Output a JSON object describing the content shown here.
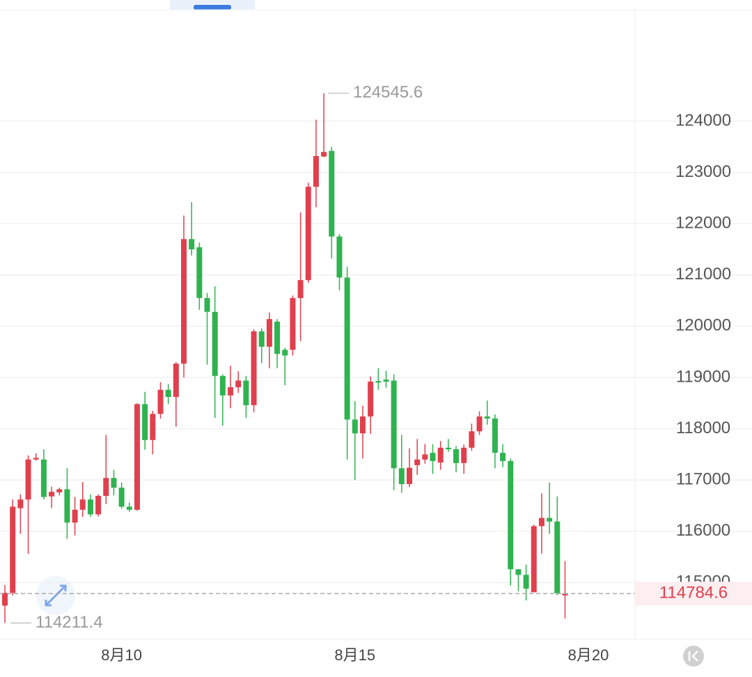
{
  "chart_data": {
    "type": "candlestick",
    "x": [
      0,
      1,
      2,
      3,
      4,
      5,
      6,
      7,
      8,
      9,
      10,
      11,
      12,
      13,
      14,
      15,
      16,
      17,
      18,
      19,
      20,
      21,
      22,
      23,
      24,
      25,
      26,
      27,
      28,
      29,
      30,
      31,
      32,
      33,
      34,
      35,
      36,
      37,
      38,
      39,
      40,
      41,
      42,
      43,
      44,
      45,
      46,
      47,
      48,
      49,
      50,
      51,
      52,
      53,
      54,
      55,
      56,
      57,
      58,
      59,
      60,
      61,
      62,
      63,
      64,
      65,
      66,
      67,
      68,
      69,
      70,
      71,
      72
    ],
    "open": [
      114550,
      114800,
      116450,
      116620,
      117400,
      117400,
      116680,
      116760,
      116820,
      116170,
      116420,
      116620,
      116330,
      116690,
      117040,
      116850,
      116480,
      116420,
      118480,
      117780,
      118290,
      118760,
      118620,
      119270,
      121700,
      121540,
      120550,
      120280,
      119030,
      118650,
      118810,
      118940,
      118460,
      119900,
      119600,
      120090,
      119540,
      119540,
      120550,
      120900,
      122720,
      123310,
      123420,
      121750,
      120950,
      118180,
      117910,
      118240,
      118930,
      118960,
      118940,
      117230,
      116920,
      117290,
      117400,
      117530,
      117340,
      117630,
      117600,
      117330,
      117630,
      117950,
      118240,
      118200,
      117530,
      117370,
      115260,
      115150,
      114810,
      116100,
      116260,
      116190,
      114750
    ],
    "high": [
      114950,
      116620,
      116720,
      117480,
      117520,
      117600,
      116870,
      116850,
      117230,
      116670,
      116960,
      116720,
      116720,
      117880,
      117200,
      116950,
      116560,
      118500,
      118720,
      118350,
      118910,
      118870,
      119300,
      122160,
      122420,
      121630,
      120650,
      120780,
      119060,
      119230,
      119120,
      119030,
      119940,
      119960,
      120270,
      120140,
      119580,
      120600,
      122220,
      122800,
      124030,
      124545.6,
      123500,
      121800,
      121160,
      118540,
      118450,
      119020,
      119180,
      119130,
      119060,
      117880,
      117620,
      117800,
      117700,
      117700,
      117760,
      117800,
      117660,
      117690,
      118100,
      118340,
      118550,
      118280,
      117700,
      117420,
      115260,
      115350,
      116130,
      116740,
      116950,
      116680,
      115420
    ],
    "low": [
      114211.4,
      114750,
      115950,
      115560,
      117380,
      116620,
      116450,
      116700,
      115850,
      115920,
      116280,
      116280,
      116290,
      116530,
      116700,
      116440,
      116380,
      116400,
      117590,
      117500,
      118200,
      118480,
      118040,
      119000,
      121380,
      120320,
      119250,
      118210,
      118060,
      118400,
      118700,
      118210,
      118320,
      119280,
      119180,
      119180,
      118850,
      119430,
      119710,
      120850,
      122320,
      123300,
      121320,
      120700,
      117400,
      117000,
      117420,
      117900,
      118760,
      118800,
      116800,
      116750,
      116860,
      117100,
      117320,
      117120,
      117200,
      117550,
      117150,
      117120,
      117570,
      117880,
      118080,
      117230,
      117250,
      114940,
      114830,
      114650,
      114810,
      115560,
      115950,
      114750,
      114300
    ],
    "close": [
      114800,
      116480,
      116620,
      117400,
      117430,
      116670,
      116770,
      116820,
      116170,
      116420,
      116620,
      116330,
      116690,
      117040,
      116850,
      116480,
      116420,
      118480,
      117780,
      118290,
      118760,
      118620,
      119270,
      121700,
      121500,
      120550,
      120280,
      119030,
      118650,
      118810,
      118940,
      118460,
      119900,
      119600,
      120140,
      119460,
      119430,
      120550,
      120900,
      122720,
      123320,
      123400,
      121750,
      120950,
      118180,
      117910,
      118240,
      118920,
      118900,
      118920,
      117230,
      116920,
      117240,
      117400,
      117500,
      117370,
      117630,
      117600,
      117330,
      117630,
      117950,
      118240,
      118200,
      117530,
      117370,
      115260,
      115150,
      114880,
      116100,
      116260,
      116190,
      114790,
      114784.6
    ],
    "up_color": "#e0404e",
    "down_color": "#2fb350",
    "xlim": [
      -0.63,
      81
    ],
    "xticks": [
      {
        "value": 15,
        "label": "8月10"
      },
      {
        "value": 45,
        "label": "8月15"
      },
      {
        "value": 75,
        "label": "8月20"
      }
    ],
    "ylim": [
      113891,
      126160
    ],
    "yticks": [
      115000,
      116000,
      117000,
      118000,
      119000,
      120000,
      121000,
      122000,
      123000,
      124000
    ],
    "grid": true
  }
}
